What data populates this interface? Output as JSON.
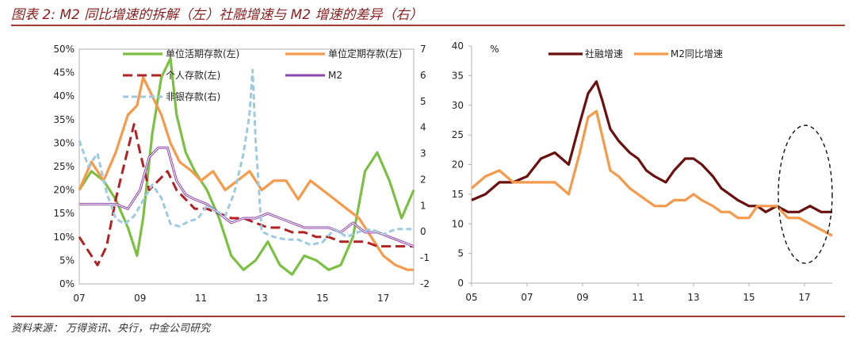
{
  "title": "图表 2: M2 同比增速的拆解（左）社融增速与 M2 增速的差异（右）",
  "source": "资料来源：   万得资讯、央行，中金公司研究",
  "colors": {
    "huo": "#7bc043",
    "ding": "#f5994a",
    "geren": "#b22222",
    "m2left": "#8e44ad",
    "feiyin": "#9ecae1",
    "shrong": "#6b0f0f",
    "m2right": "#f5994a",
    "frame": "#b0b0b0"
  },
  "chart_data": [
    {
      "type": "line",
      "title": "M2 同比增速的拆解",
      "x_ticks": [
        "07",
        "09",
        "11",
        "13",
        "15",
        "17"
      ],
      "y_left_ticks": [
        "0%",
        "5%",
        "10%",
        "15%",
        "20%",
        "25%",
        "30%",
        "35%",
        "40%",
        "45%",
        "50%"
      ],
      "y_right_ticks": [
        "-2",
        "-1",
        "0",
        "1",
        "2",
        "3",
        "4",
        "5",
        "6",
        "7"
      ],
      "xlim": [
        2007,
        2018
      ],
      "ylim_left": [
        0,
        50
      ],
      "ylim_right": [
        -2,
        7
      ],
      "legend": [
        "单位活期存款(左)",
        "单位定期存款(左)",
        "个人存款(左)",
        "M2",
        "非银存款(右)"
      ],
      "series": [
        {
          "name": "单位活期存款(左)",
          "axis": "left",
          "x": [
            2007,
            2007.4,
            2007.8,
            2008.2,
            2008.6,
            2008.9,
            2009.1,
            2009.4,
            2009.7,
            2010.0,
            2010.2,
            2010.5,
            2010.8,
            2011.2,
            2011.6,
            2012.0,
            2012.4,
            2012.8,
            2013.2,
            2013.6,
            2014.0,
            2014.4,
            2014.8,
            2015.2,
            2015.6,
            2016.0,
            2016.4,
            2016.8,
            2017.2,
            2017.6,
            2018.0
          ],
          "values": [
            20,
            24,
            22,
            18,
            12,
            6,
            14,
            32,
            44,
            48,
            36,
            28,
            24,
            20,
            14,
            6,
            3,
            5,
            9,
            4,
            2,
            6,
            5,
            3,
            4,
            10,
            24,
            28,
            22,
            14,
            20
          ]
        },
        {
          "name": "单位定期存款(左)",
          "axis": "left",
          "x": [
            2007,
            2007.4,
            2007.8,
            2008.2,
            2008.6,
            2008.9,
            2009.1,
            2009.4,
            2009.7,
            2010.0,
            2010.3,
            2010.7,
            2011.0,
            2011.4,
            2011.8,
            2012.2,
            2012.6,
            2013.0,
            2013.4,
            2013.8,
            2014.2,
            2014.6,
            2015.0,
            2015.4,
            2015.8,
            2016.2,
            2016.6,
            2017.0,
            2017.4,
            2017.8,
            2018.0
          ],
          "values": [
            20,
            26,
            22,
            28,
            36,
            38,
            44,
            40,
            36,
            30,
            26,
            24,
            22,
            24,
            20,
            22,
            24,
            20,
            22,
            22,
            18,
            22,
            20,
            18,
            16,
            14,
            10,
            6,
            4,
            3,
            3
          ]
        },
        {
          "name": "个人存款(左)",
          "axis": "left",
          "x": [
            2007,
            2007.3,
            2007.6,
            2007.9,
            2008.2,
            2008.5,
            2008.8,
            2009.0,
            2009.3,
            2009.6,
            2009.9,
            2010.2,
            2010.5,
            2010.8,
            2011.2,
            2011.6,
            2012.0,
            2012.4,
            2012.8,
            2013.2,
            2013.6,
            2014.0,
            2014.4,
            2014.8,
            2015.2,
            2015.6,
            2016.0,
            2016.4,
            2016.8,
            2017.2,
            2017.6,
            2018.0
          ],
          "values": [
            10,
            7,
            4,
            8,
            18,
            26,
            34,
            28,
            20,
            22,
            24,
            20,
            18,
            16,
            16,
            15,
            14,
            14,
            13,
            12,
            12,
            11,
            11,
            10,
            10,
            9,
            9,
            9,
            8,
            8,
            8,
            8
          ]
        },
        {
          "name": "M2",
          "axis": "left",
          "x": [
            2007,
            2007.4,
            2007.8,
            2008.2,
            2008.6,
            2009.0,
            2009.3,
            2009.6,
            2009.9,
            2010.2,
            2010.5,
            2010.8,
            2011.2,
            2011.6,
            2012.0,
            2012.4,
            2012.8,
            2013.2,
            2013.6,
            2014.0,
            2014.4,
            2014.8,
            2015.2,
            2015.6,
            2016.0,
            2016.4,
            2016.8,
            2017.2,
            2017.6,
            2018.0
          ],
          "values": [
            17,
            17,
            17,
            17,
            16,
            20,
            27,
            29,
            29,
            22,
            19,
            18,
            17,
            15,
            13,
            14,
            14,
            15,
            14,
            13,
            12,
            12,
            12,
            11,
            13,
            11,
            11,
            10,
            9,
            8
          ]
        },
        {
          "name": "非银存款(右)",
          "axis": "right",
          "x": [
            2007,
            2007.3,
            2007.6,
            2007.9,
            2008.2,
            2008.5,
            2008.8,
            2009.1,
            2009.4,
            2009.7,
            2010.0,
            2010.3,
            2010.6,
            2010.9,
            2011.2,
            2011.5,
            2011.8,
            2012.1,
            2012.4,
            2012.6,
            2012.7,
            2012.8,
            2013.0,
            2013.4,
            2013.8,
            2014.2,
            2014.6,
            2015.0,
            2015.4,
            2015.8,
            2016.2,
            2016.6,
            2017.0,
            2017.4,
            2017.8,
            2018.0
          ],
          "values": [
            3.5,
            2.5,
            3.0,
            1.5,
            0.5,
            0.3,
            0.6,
            1.2,
            1.8,
            1.3,
            0.3,
            0.2,
            0.4,
            0.5,
            1.0,
            0.8,
            0.6,
            1.5,
            3.0,
            4.5,
            6.2,
            3.5,
            0.0,
            -0.2,
            -0.3,
            -0.3,
            -0.5,
            -0.4,
            0.1,
            -0.2,
            0.0,
            0.1,
            -0.1,
            0.1,
            0.1,
            0.1
          ]
        }
      ]
    },
    {
      "type": "line",
      "title": "社融增速与 M2 增速的差异",
      "x_ticks": [
        "05",
        "07",
        "09",
        "11",
        "13",
        "15",
        "17"
      ],
      "y_ticks": [
        "0",
        "5",
        "10",
        "15",
        "20",
        "25",
        "30",
        "35",
        "40"
      ],
      "y_unit": "%",
      "xlim": [
        2005,
        2018
      ],
      "ylim": [
        0,
        40
      ],
      "legend": [
        "社融增速",
        "M2同比增速"
      ],
      "series": [
        {
          "name": "社融增速",
          "x": [
            2005,
            2005.5,
            2006,
            2006.5,
            2007,
            2007.5,
            2008,
            2008.5,
            2008.9,
            2009.2,
            2009.5,
            2009.7,
            2010.0,
            2010.3,
            2010.7,
            2011.0,
            2011.3,
            2011.6,
            2012.0,
            2012.3,
            2012.7,
            2013.0,
            2013.3,
            2013.7,
            2014.0,
            2014.3,
            2014.6,
            2015.0,
            2015.3,
            2015.6,
            2016.0,
            2016.4,
            2016.8,
            2017.2,
            2017.6,
            2018.0
          ],
          "values": [
            14,
            15,
            17,
            17,
            18,
            21,
            22,
            20,
            27,
            32,
            34,
            31,
            26,
            24,
            22,
            21,
            19,
            18,
            17,
            19,
            21,
            21,
            20,
            18,
            16,
            15,
            14,
            13,
            13,
            12,
            13,
            12,
            12,
            13,
            12,
            12
          ]
        },
        {
          "name": "M2同比增速",
          "x": [
            2005,
            2005.5,
            2006,
            2006.5,
            2007,
            2007.5,
            2008,
            2008.5,
            2008.9,
            2009.2,
            2009.5,
            2009.7,
            2010.0,
            2010.3,
            2010.7,
            2011.0,
            2011.3,
            2011.6,
            2012.0,
            2012.3,
            2012.7,
            2013.0,
            2013.3,
            2013.7,
            2014.0,
            2014.3,
            2014.6,
            2015.0,
            2015.3,
            2015.6,
            2016.0,
            2016.4,
            2016.8,
            2017.2,
            2017.6,
            2018.0
          ],
          "values": [
            16,
            18,
            19,
            17,
            17,
            17,
            17,
            15,
            22,
            28,
            29,
            25,
            19,
            18,
            16,
            15,
            14,
            13,
            13,
            14,
            14,
            15,
            14,
            13,
            12,
            12,
            11,
            11,
            13,
            13,
            13,
            11,
            11,
            10,
            9,
            8
          ]
        }
      ]
    }
  ]
}
